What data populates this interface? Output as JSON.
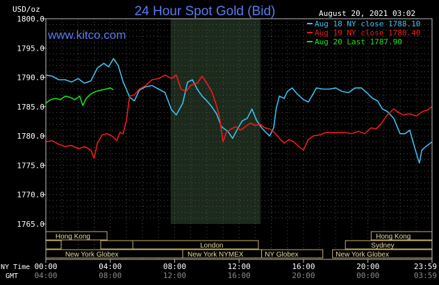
{
  "header": {
    "title": "24 Hour Spot Gold (Bid)",
    "website": "www.kitco.com",
    "timestamp": "August 20, 2021 03:02",
    "y_unit": "USD/oz"
  },
  "legend": [
    {
      "label": "Aug 18 NY close 1788.10",
      "color": "#3ec1ee"
    },
    {
      "label": "Aug 19 NY close 1780.40",
      "color": "#ee1c1c"
    },
    {
      "label": "Aug 20 Last 1787.90",
      "color": "#19e119"
    }
  ],
  "y_ticks": [
    "1800.0",
    "1795.0",
    "1790.0",
    "1785.0",
    "1780.0",
    "1775.0",
    "1770.0",
    "1765.0"
  ],
  "x_axis": {
    "row1_label": "NY Time",
    "row2_label": "GMT",
    "ny_ticks": [
      "00:00",
      "04:00",
      "08:00",
      "12:00",
      "16:00",
      "20:00",
      "23:59"
    ],
    "gmt_ticks": [
      "04:00",
      "08:00",
      "12:00",
      "16:00",
      "20:00",
      "00:00",
      "03:59"
    ]
  },
  "sessions": [
    {
      "label": "Hong Kong"
    },
    {
      "label": "London"
    },
    {
      "label": "New York Globex"
    },
    {
      "label": "New York NYMEX"
    },
    {
      "label": "NY Globex"
    },
    {
      "label": "Hong Kong"
    },
    {
      "label": "Sydney"
    },
    {
      "label": "New York Globex"
    }
  ],
  "chart_data": {
    "type": "line",
    "title": "24 Hour Spot Gold (Bid)",
    "ylabel": "USD/oz",
    "xlabel": "NY Time",
    "ylim": [
      1765,
      1800
    ],
    "xlim_hours": [
      0,
      23.983
    ],
    "grid": "dotted",
    "legend_position": "top-right",
    "shaded_region_hours": [
      7.75,
      13.33
    ],
    "series": [
      {
        "name": "Aug 18 NY close 1788.10",
        "color": "#3ec1ee",
        "points": [
          [
            0.0,
            1790.4
          ],
          [
            0.4,
            1790.2
          ],
          [
            0.8,
            1789.6
          ],
          [
            1.2,
            1789.6
          ],
          [
            1.6,
            1789.2
          ],
          [
            2.0,
            1789.8
          ],
          [
            2.4,
            1789.0
          ],
          [
            2.8,
            1789.4
          ],
          [
            3.2,
            1791.6
          ],
          [
            3.6,
            1792.4
          ],
          [
            3.9,
            1791.8
          ],
          [
            4.2,
            1793.2
          ],
          [
            4.5,
            1792.0
          ],
          [
            4.8,
            1789.2
          ],
          [
            5.0,
            1788.0
          ],
          [
            5.2,
            1786.6
          ],
          [
            5.5,
            1786.0
          ],
          [
            5.8,
            1787.8
          ],
          [
            6.2,
            1788.4
          ],
          [
            6.6,
            1788.6
          ],
          [
            7.0,
            1788.0
          ],
          [
            7.4,
            1787.4
          ],
          [
            7.8,
            1784.5
          ],
          [
            8.1,
            1783.6
          ],
          [
            8.5,
            1785.6
          ],
          [
            8.8,
            1789.2
          ],
          [
            9.1,
            1789.6
          ],
          [
            9.4,
            1788.0
          ],
          [
            9.7,
            1786.8
          ],
          [
            10.0,
            1786.0
          ],
          [
            10.3,
            1785.0
          ],
          [
            10.6,
            1783.8
          ],
          [
            10.9,
            1781.6
          ],
          [
            11.3,
            1780.8
          ],
          [
            11.6,
            1779.6
          ],
          [
            11.9,
            1781.2
          ],
          [
            12.2,
            1782.6
          ],
          [
            12.5,
            1783.0
          ],
          [
            12.8,
            1784.6
          ],
          [
            13.1,
            1782.6
          ],
          [
            13.4,
            1781.4
          ],
          [
            13.6,
            1780.8
          ],
          [
            13.9,
            1780.0
          ],
          [
            14.15,
            1781.4
          ],
          [
            14.3,
            1784.6
          ],
          [
            14.5,
            1786.8
          ],
          [
            14.8,
            1786.4
          ],
          [
            15.0,
            1787.6
          ],
          [
            15.3,
            1788.2
          ],
          [
            15.6,
            1787.2
          ],
          [
            16.0,
            1786.2
          ],
          [
            16.3,
            1785.8
          ],
          [
            16.6,
            1787.2
          ],
          [
            16.8,
            1788.2
          ],
          [
            17.2,
            1788.0
          ],
          [
            17.6,
            1788.0
          ],
          [
            18.0,
            1788.2
          ],
          [
            18.4,
            1787.6
          ],
          [
            18.8,
            1787.4
          ],
          [
            19.2,
            1788.2
          ],
          [
            19.6,
            1788.2
          ],
          [
            20.0,
            1787.2
          ],
          [
            20.3,
            1786.4
          ],
          [
            20.6,
            1786.0
          ],
          [
            20.9,
            1784.6
          ],
          [
            21.2,
            1784.2
          ],
          [
            21.6,
            1783.0
          ],
          [
            22.0,
            1780.4
          ],
          [
            22.3,
            1780.4
          ],
          [
            22.6,
            1781.0
          ],
          [
            22.8,
            1779.0
          ],
          [
            23.1,
            1776.2
          ],
          [
            23.2,
            1775.4
          ],
          [
            23.35,
            1777.6
          ],
          [
            23.6,
            1778.2
          ],
          [
            23.98,
            1779.0
          ]
        ]
      },
      {
        "name": "Aug 19 NY close 1780.40",
        "color": "#ee1c1c",
        "points": [
          [
            0.0,
            1779.0
          ],
          [
            0.4,
            1779.2
          ],
          [
            0.8,
            1778.6
          ],
          [
            1.2,
            1778.2
          ],
          [
            1.6,
            1778.4
          ],
          [
            2.0,
            1777.8
          ],
          [
            2.4,
            1778.2
          ],
          [
            2.8,
            1777.6
          ],
          [
            3.0,
            1776.2
          ],
          [
            3.2,
            1778.8
          ],
          [
            3.5,
            1780.2
          ],
          [
            3.8,
            1780.4
          ],
          [
            4.1,
            1780.0
          ],
          [
            4.4,
            1779.2
          ],
          [
            4.6,
            1780.6
          ],
          [
            4.8,
            1780.4
          ],
          [
            5.0,
            1782.6
          ],
          [
            5.2,
            1786.8
          ],
          [
            5.5,
            1787.0
          ],
          [
            5.8,
            1788.0
          ],
          [
            6.2,
            1788.6
          ],
          [
            6.6,
            1789.6
          ],
          [
            7.0,
            1789.8
          ],
          [
            7.4,
            1790.4
          ],
          [
            7.8,
            1789.8
          ],
          [
            8.1,
            1790.4
          ],
          [
            8.4,
            1788.0
          ],
          [
            8.7,
            1787.6
          ],
          [
            9.0,
            1788.6
          ],
          [
            9.4,
            1789.0
          ],
          [
            9.7,
            1790.2
          ],
          [
            10.0,
            1789.0
          ],
          [
            10.3,
            1787.6
          ],
          [
            10.6,
            1785.2
          ],
          [
            10.8,
            1783.0
          ],
          [
            11.0,
            1779.0
          ],
          [
            11.2,
            1780.6
          ],
          [
            11.5,
            1781.2
          ],
          [
            11.8,
            1781.6
          ],
          [
            12.1,
            1781.0
          ],
          [
            12.4,
            1781.6
          ],
          [
            12.7,
            1782.2
          ],
          [
            13.0,
            1781.8
          ],
          [
            13.3,
            1782.0
          ],
          [
            13.6,
            1781.4
          ],
          [
            13.9,
            1781.2
          ],
          [
            14.2,
            1780.6
          ],
          [
            14.5,
            1779.6
          ],
          [
            14.8,
            1778.8
          ],
          [
            15.1,
            1779.4
          ],
          [
            15.4,
            1779.0
          ],
          [
            15.7,
            1778.2
          ],
          [
            16.0,
            1777.6
          ],
          [
            16.3,
            1779.4
          ],
          [
            16.6,
            1780.0
          ],
          [
            17.0,
            1780.2
          ],
          [
            17.4,
            1780.6
          ],
          [
            17.8,
            1780.6
          ],
          [
            18.2,
            1780.6
          ],
          [
            18.6,
            1780.6
          ],
          [
            19.0,
            1780.4
          ],
          [
            19.4,
            1780.8
          ],
          [
            19.8,
            1780.4
          ],
          [
            20.2,
            1781.4
          ],
          [
            20.5,
            1781.2
          ],
          [
            20.8,
            1782.0
          ],
          [
            21.2,
            1783.6
          ],
          [
            21.6,
            1784.6
          ],
          [
            21.9,
            1784.0
          ],
          [
            22.2,
            1783.6
          ],
          [
            22.6,
            1783.8
          ],
          [
            23.0,
            1783.4
          ],
          [
            23.4,
            1784.2
          ],
          [
            23.7,
            1784.4
          ],
          [
            23.98,
            1785.0
          ]
        ]
      },
      {
        "name": "Aug 20 Last 1787.90",
        "color": "#19e119",
        "points": [
          [
            0.0,
            1785.6
          ],
          [
            0.3,
            1786.2
          ],
          [
            0.6,
            1786.4
          ],
          [
            0.9,
            1786.2
          ],
          [
            1.2,
            1786.8
          ],
          [
            1.5,
            1786.6
          ],
          [
            1.8,
            1786.2
          ],
          [
            2.1,
            1786.8
          ],
          [
            2.3,
            1785.2
          ],
          [
            2.5,
            1786.4
          ],
          [
            2.8,
            1787.2
          ],
          [
            3.1,
            1787.6
          ],
          [
            3.4,
            1787.8
          ],
          [
            3.7,
            1788.0
          ],
          [
            4.0,
            1788.2
          ],
          [
            4.2,
            1787.9
          ]
        ]
      }
    ]
  }
}
